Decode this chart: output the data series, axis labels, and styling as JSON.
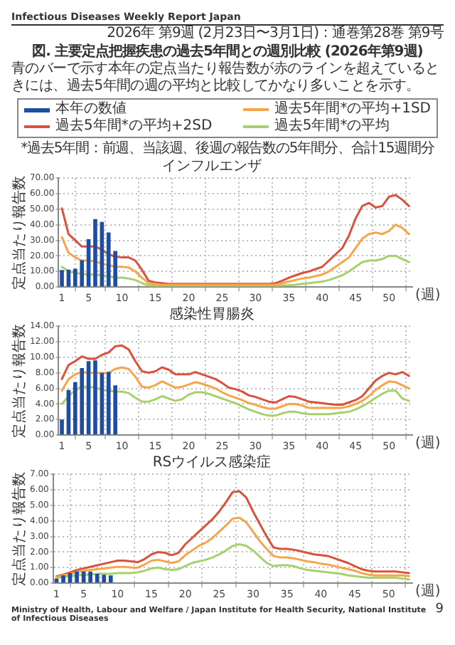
{
  "chart_data": [
    {
      "type": "line",
      "title": "インフルエンザ",
      "ylabel": "定点当たり報告数",
      "xlabel": "(週)",
      "annotations": [
        "Infectious Diseases Weekly Report Japan",
        "2026年 第9週 (2月23日〜3月1日)：通巻第28巻 第9号",
        "図. 主要定点把握疾患の過去5年間との週別比較 (2026年第9週)",
        "青のバーで示す本年の定点当たり報告数が赤のラインを超えているときには、過去5年間の週の平均と比較してかなり多いことを示す。",
        "*過去5年間：前週、当該週、後週の報告数の5年間分、合計15週間分",
        "Ministry of Health, Labour and Welfare / Japan Institute for Health Security, National Institute of Infectious Diseases",
        "9"
      ],
      "x": [
        1,
        2,
        3,
        4,
        5,
        6,
        7,
        8,
        9,
        10,
        11,
        12,
        13,
        14,
        15,
        16,
        17,
        18,
        19,
        20,
        21,
        22,
        23,
        24,
        25,
        26,
        27,
        28,
        29,
        30,
        31,
        32,
        33,
        34,
        35,
        36,
        37,
        38,
        39,
        40,
        41,
        42,
        43,
        44,
        45,
        46,
        47,
        48,
        49,
        50,
        51,
        52,
        53
      ],
      "xlim": [
        0.5,
        53.5
      ],
      "xticks": [
        1,
        5,
        10,
        15,
        20,
        25,
        30,
        35,
        40,
        45,
        50
      ],
      "ylim": [
        0,
        70
      ],
      "yticks": [
        {
          "value": 0,
          "label": "0.00"
        },
        {
          "value": 10,
          "label": "10.00"
        },
        {
          "value": 20,
          "label": "20.00"
        },
        {
          "value": 30,
          "label": "30.00"
        },
        {
          "value": 40,
          "label": "40.00"
        },
        {
          "value": 50,
          "label": "50.00"
        },
        {
          "value": 60,
          "label": "60.00"
        },
        {
          "value": 70,
          "label": "70.00"
        }
      ],
      "grid": true,
      "legend": "top",
      "marker": "none",
      "line_style": "solid",
      "series": [
        {
          "name": "本年の数値",
          "type": "bar",
          "color": "#1f4e9f",
          "x": [
            1,
            2,
            3,
            4,
            5,
            6,
            7,
            8,
            9
          ],
          "values": [
            10.9,
            11.2,
            11.7,
            17.2,
            30.7,
            43.6,
            41.8,
            35,
            23.2
          ]
        },
        {
          "name": "過去5年間*の平均+1SD",
          "color": "#f7a54a",
          "values": [
            32,
            22,
            19,
            17,
            17,
            16.5,
            15,
            14,
            13,
            13,
            12.5,
            10,
            6,
            2.5,
            2,
            1.5,
            1.5,
            1.5,
            1.5,
            1.5,
            1.5,
            1.5,
            1.5,
            1.5,
            1.5,
            1.5,
            1.5,
            1.5,
            1.5,
            1.5,
            1.5,
            1.5,
            1.5,
            2.5,
            3.5,
            4.5,
            5.5,
            6,
            7,
            8,
            10,
            13,
            16,
            19,
            25,
            31,
            34,
            35,
            34,
            36,
            40,
            38,
            34
          ]
        },
        {
          "name": "過去5年間*の平均+2SD",
          "color": "#d9533c",
          "values": [
            50.5,
            34,
            30,
            26,
            26,
            26,
            24,
            21,
            19.5,
            19,
            19,
            17,
            11,
            4,
            3,
            2.5,
            2,
            2,
            2,
            2,
            2,
            2,
            2,
            2,
            2,
            2,
            2,
            2,
            2,
            2,
            2,
            2,
            2.5,
            4,
            6,
            7.5,
            9,
            10,
            11.5,
            13,
            17,
            21,
            25,
            33,
            44,
            52,
            54,
            51,
            52,
            58,
            59,
            56,
            52
          ]
        },
        {
          "name": "過去5年間*の平均",
          "color": "#a6d16b",
          "values": [
            13,
            10,
            9,
            8.5,
            8,
            8,
            7.5,
            7,
            6,
            6,
            5.5,
            4.5,
            2.5,
            1,
            1,
            1,
            1,
            1,
            1,
            1,
            1,
            1,
            1,
            1,
            1,
            1,
            1,
            1,
            1,
            1,
            1,
            1,
            1,
            1,
            1.2,
            1.5,
            2,
            2.5,
            3,
            3.5,
            4.5,
            6,
            7.5,
            10,
            13,
            16,
            17,
            17,
            18,
            20,
            20,
            18,
            16
          ]
        }
      ]
    },
    {
      "type": "line",
      "title": "感染性胃腸炎",
      "ylabel": "定点当たり報告数",
      "xlabel": "(週)",
      "x": [
        1,
        2,
        3,
        4,
        5,
        6,
        7,
        8,
        9,
        10,
        11,
        12,
        13,
        14,
        15,
        16,
        17,
        18,
        19,
        20,
        21,
        22,
        23,
        24,
        25,
        26,
        27,
        28,
        29,
        30,
        31,
        32,
        33,
        34,
        35,
        36,
        37,
        38,
        39,
        40,
        41,
        42,
        43,
        44,
        45,
        46,
        47,
        48,
        49,
        50,
        51,
        52,
        53
      ],
      "xlim": [
        0.5,
        53.5
      ],
      "xticks": [
        1,
        5,
        10,
        15,
        20,
        25,
        30,
        35,
        40,
        45,
        50
      ],
      "ylim": [
        0,
        14
      ],
      "yticks": [
        {
          "value": 0,
          "label": "0.00"
        },
        {
          "value": 2,
          "label": "2.00"
        },
        {
          "value": 4,
          "label": "4.00"
        },
        {
          "value": 6,
          "label": "6.00"
        },
        {
          "value": 8,
          "label": "8.00"
        },
        {
          "value": 10,
          "label": "10.00"
        },
        {
          "value": 12,
          "label": "12.00"
        },
        {
          "value": 14,
          "label": "14.00"
        }
      ],
      "grid": true,
      "marker": "none",
      "line_style": "solid",
      "series": [
        {
          "type": "bar",
          "color": "#1f4e9f",
          "x": [
            1,
            2,
            3,
            4,
            5,
            6,
            7,
            8,
            9
          ],
          "values": [
            2,
            5.8,
            6.8,
            8.6,
            9.5,
            9.6,
            8,
            8.1,
            6.4
          ]
        },
        {
          "color": "#f7a54a",
          "values": [
            5.7,
            7.2,
            7.8,
            8.1,
            8,
            8,
            8,
            8,
            8.5,
            8.7,
            8.5,
            7.5,
            6.2,
            6.1,
            6.4,
            6.9,
            6.5,
            6.1,
            6.2,
            6.5,
            6.8,
            6.6,
            6.3,
            6,
            5.5,
            5.1,
            4.8,
            4.5,
            4.1,
            3.9,
            3.6,
            3.4,
            3.4,
            3.7,
            4,
            4,
            3.8,
            3.5,
            3.5,
            3.5,
            3.5,
            3.5,
            3.5,
            3.7,
            4,
            4.4,
            5,
            5.8,
            6.4,
            6.9,
            6.8,
            6.4,
            6
          ]
        },
        {
          "color": "#d9533c",
          "values": [
            7.2,
            9,
            9.5,
            10.1,
            9.8,
            9.8,
            10.3,
            10.6,
            11.4,
            11.5,
            11,
            9.5,
            8.2,
            8,
            8.2,
            8.7,
            8.4,
            7.8,
            7.8,
            7.8,
            8.1,
            7.8,
            7.5,
            7.2,
            6.7,
            6.1,
            5.9,
            5.6,
            5.1,
            4.9,
            4.6,
            4.3,
            4.2,
            4.6,
            5,
            4.9,
            4.6,
            4.3,
            4.2,
            4.1,
            4,
            3.9,
            3.9,
            4.2,
            4.5,
            5,
            6,
            7,
            7.6,
            8,
            7.8,
            8.1,
            7.6
          ]
        },
        {
          "color": "#a6d16b",
          "values": [
            4,
            5,
            5.8,
            6.2,
            6.2,
            6.1,
            5.8,
            5.7,
            5.6,
            5.6,
            5.4,
            4.8,
            4.3,
            4.3,
            4.6,
            5,
            4.7,
            4.4,
            4.6,
            5.2,
            5.5,
            5.5,
            5.3,
            5,
            4.7,
            4.4,
            4.1,
            3.7,
            3.3,
            3,
            2.7,
            2.5,
            2.5,
            2.8,
            3,
            3,
            2.8,
            2.7,
            2.7,
            2.7,
            2.7,
            2.8,
            2.9,
            3,
            3.3,
            3.7,
            4.2,
            4.8,
            5.3,
            5.7,
            5.7,
            4.7,
            4.4
          ]
        }
      ]
    },
    {
      "type": "line",
      "title": "RSウイルス感染症",
      "ylabel": "定点当たり報告数",
      "xlabel": "(週)",
      "x": [
        1,
        2,
        3,
        4,
        5,
        6,
        7,
        8,
        9,
        10,
        11,
        12,
        13,
        14,
        15,
        16,
        17,
        18,
        19,
        20,
        21,
        22,
        23,
        24,
        25,
        26,
        27,
        28,
        29,
        30,
        31,
        32,
        33,
        34,
        35,
        36,
        37,
        38,
        39,
        40,
        41,
        42,
        43,
        44,
        45,
        46,
        47,
        48,
        49,
        50,
        51,
        52,
        53
      ],
      "xlim": [
        0.5,
        53.5
      ],
      "xticks": [
        1,
        5,
        10,
        15,
        20,
        25,
        30,
        35,
        40,
        45,
        50
      ],
      "ylim": [
        0,
        7
      ],
      "yticks": [
        {
          "value": 0,
          "label": "0.00"
        },
        {
          "value": 1,
          "label": "1.00"
        },
        {
          "value": 2,
          "label": "2.00"
        },
        {
          "value": 3,
          "label": "3.00"
        },
        {
          "value": 4,
          "label": "4.00"
        },
        {
          "value": 5,
          "label": "5.00"
        },
        {
          "value": 6,
          "label": "6.00"
        },
        {
          "value": 7,
          "label": "7.00"
        }
      ],
      "grid": true,
      "marker": "none",
      "line_style": "solid",
      "series": [
        {
          "type": "bar",
          "color": "#1f4e9f",
          "x": [
            1,
            2,
            3,
            4,
            5,
            6,
            7,
            8,
            9
          ],
          "values": [
            0.3,
            0.5,
            0.65,
            0.75,
            0.75,
            0.75,
            0.6,
            0.55,
            0.5
          ]
        },
        {
          "color": "#f7a54a",
          "values": [
            0.4,
            0.5,
            0.6,
            0.7,
            0.8,
            0.85,
            0.9,
            0.95,
            1,
            1.05,
            1.05,
            1,
            1,
            1.2,
            1.45,
            1.5,
            1.4,
            1.3,
            1.4,
            1.8,
            2.1,
            2.4,
            2.6,
            2.9,
            3.3,
            3.7,
            4.15,
            4.2,
            3.9,
            3.3,
            2.7,
            2.2,
            1.75,
            1.65,
            1.65,
            1.6,
            1.5,
            1.4,
            1.35,
            1.25,
            1.2,
            1.1,
            1,
            0.9,
            0.8,
            0.65,
            0.55,
            0.5,
            0.5,
            0.5,
            0.5,
            0.5,
            0.45
          ]
        },
        {
          "color": "#d9533c",
          "values": [
            0.45,
            0.55,
            0.7,
            0.85,
            0.95,
            1.05,
            1.15,
            1.25,
            1.35,
            1.45,
            1.45,
            1.4,
            1.35,
            1.55,
            1.85,
            2,
            1.95,
            1.8,
            1.95,
            2.5,
            2.9,
            3.3,
            3.7,
            4.1,
            4.6,
            5.2,
            5.85,
            5.9,
            5.5,
            4.6,
            3.8,
            3,
            2.3,
            2.2,
            2.2,
            2.15,
            2.05,
            1.95,
            1.85,
            1.8,
            1.75,
            1.6,
            1.45,
            1.3,
            1.1,
            0.9,
            0.8,
            0.75,
            0.75,
            0.75,
            0.75,
            0.7,
            0.65
          ]
        },
        {
          "color": "#a6d16b",
          "values": [
            0.35,
            0.4,
            0.45,
            0.5,
            0.55,
            0.55,
            0.6,
            0.6,
            0.6,
            0.65,
            0.65,
            0.65,
            0.7,
            0.8,
            0.95,
            1,
            0.9,
            0.85,
            0.9,
            1.1,
            1.3,
            1.4,
            1.5,
            1.65,
            1.85,
            2.1,
            2.4,
            2.5,
            2.4,
            2.1,
            1.7,
            1.3,
            1.1,
            1.15,
            1.15,
            1.1,
            0.95,
            0.85,
            0.8,
            0.75,
            0.7,
            0.65,
            0.6,
            0.5,
            0.45,
            0.4,
            0.35,
            0.35,
            0.35,
            0.35,
            0.35,
            0.3,
            0.25
          ]
        }
      ]
    }
  ]
}
